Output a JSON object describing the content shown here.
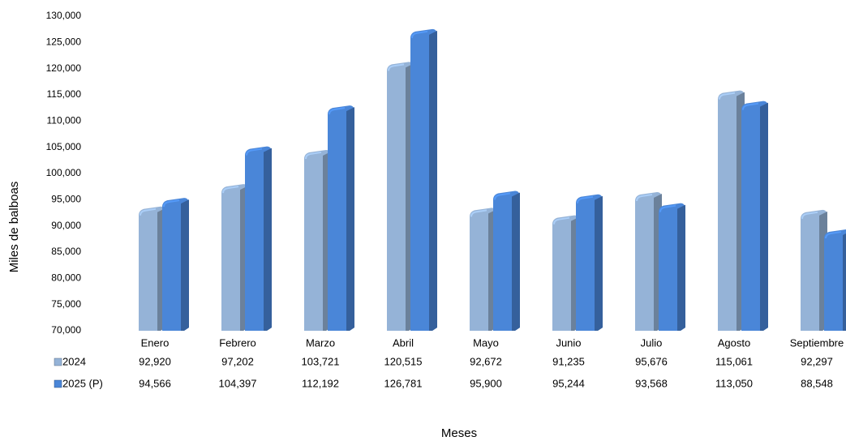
{
  "chart_data": {
    "type": "bar3d",
    "y_axis_label": "Miles de balboas",
    "x_axis_label": "Meses",
    "categories": [
      "Enero",
      "Febrero",
      "Marzo",
      "Abril",
      "Mayo",
      "Junio",
      "Julio",
      "Agosto",
      "Septiembre"
    ],
    "series": [
      {
        "name": "2024",
        "color": "#95b3d7",
        "values": [
          92920,
          97202,
          103721,
          120515,
          92672,
          91235,
          95676,
          115061,
          92297
        ],
        "value_labels": [
          "92,920",
          "97,202",
          "103,721",
          "120,515",
          "92,672",
          "91,235",
          "95,676",
          "115,061",
          "92,297"
        ]
      },
      {
        "name": "2025 (P)",
        "color": "#4a86d8",
        "values": [
          94566,
          104397,
          112192,
          126781,
          95900,
          95244,
          93568,
          113050,
          88548
        ],
        "value_labels": [
          "94,566",
          "104,397",
          "112,192",
          "126,781",
          "95,900",
          "95,244",
          "93,568",
          "113,050",
          "88,548"
        ]
      }
    ],
    "ylim": [
      70000,
      130000
    ],
    "yticks": [
      {
        "value": 70000,
        "label": "70,000"
      },
      {
        "value": 75000,
        "label": "75,000"
      },
      {
        "value": 80000,
        "label": "80,000"
      },
      {
        "value": 85000,
        "label": "85,000"
      },
      {
        "value": 90000,
        "label": "90,000"
      },
      {
        "value": 95000,
        "label": "95,000"
      },
      {
        "value": 100000,
        "label": "100,000"
      },
      {
        "value": 105000,
        "label": "105,000"
      },
      {
        "value": 110000,
        "label": "110,000"
      },
      {
        "value": 115000,
        "label": "115,000"
      },
      {
        "value": 120000,
        "label": "120,000"
      },
      {
        "value": 125000,
        "label": "125,000"
      },
      {
        "value": 130000,
        "label": "130,000"
      }
    ]
  }
}
